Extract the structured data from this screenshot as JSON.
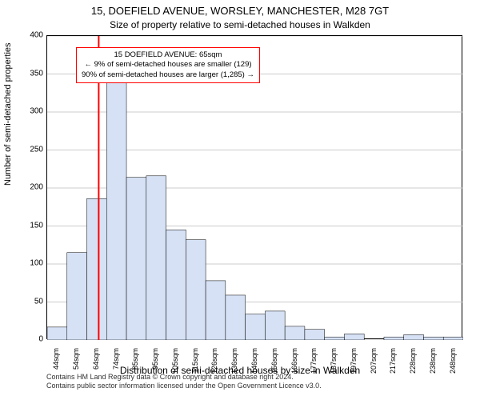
{
  "titles": {
    "line1": "15, DOEFIELD AVENUE, WORSLEY, MANCHESTER, M28 7GT",
    "line2": "Size of property relative to semi-detached houses in Walkden"
  },
  "chart": {
    "type": "histogram",
    "ylabel": "Number of semi-detached properties",
    "xlabel": "Distribution of semi-detached houses by size in Walkden",
    "background_color": "#ffffff",
    "grid_color": "#cccccc",
    "bar_fill": "#d6e1f5",
    "bar_stroke": "#000000",
    "marker_color": "#ff0000",
    "ylim": [
      0,
      400
    ],
    "ytick_step": 50,
    "marker_x_value": 65,
    "x_categories": [
      "44sqm",
      "54sqm",
      "64sqm",
      "74sqm",
      "85sqm",
      "95sqm",
      "105sqm",
      "115sqm",
      "126sqm",
      "136sqm",
      "146sqm",
      "156sqm",
      "166sqm",
      "177sqm",
      "187sqm",
      "197sqm",
      "207sqm",
      "217sqm",
      "228sqm",
      "238sqm",
      "248sqm"
    ],
    "values": [
      17,
      115,
      186,
      342,
      214,
      216,
      145,
      132,
      78,
      59,
      34,
      38,
      18,
      14,
      4,
      8,
      0,
      4,
      7,
      4,
      4
    ],
    "annotation": {
      "line1": "15 DOEFIELD AVENUE: 65sqm",
      "line2": "← 9% of semi-detached houses are smaller (129)",
      "line3": "90% of semi-detached houses are larger (1,285) →"
    }
  },
  "footer": {
    "line1": "Contains HM Land Registry data © Crown copyright and database right 2024.",
    "line2": "Contains public sector information licensed under the Open Government Licence v3.0."
  },
  "yticks": [
    0,
    50,
    100,
    150,
    200,
    250,
    300,
    350,
    400
  ]
}
